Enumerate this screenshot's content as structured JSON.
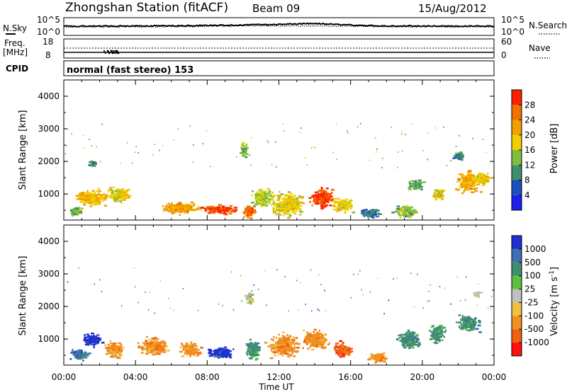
{
  "header": {
    "station": "Zhongshan Station (fitACF)",
    "beam": "Beam 09",
    "date": "15/Aug/2012"
  },
  "param_panel": {
    "nsky_label": "N.Sky",
    "nsearch_label": "N.Search",
    "nsky_ticks": [
      "10^5",
      "10^0"
    ],
    "nsearch_ticks": [
      "10^5",
      "10^0"
    ],
    "freq_label_1": "Freq.",
    "freq_label_2": "[MHz]",
    "freq_ticks": [
      "18",
      "8"
    ],
    "nave_label": "Nave",
    "nave_ticks": [
      "60",
      "0"
    ],
    "cpid_label": "CPID",
    "cpid_text": "normal (fast stereo) 153"
  },
  "time_axis": {
    "label": "Time UT",
    "ticks": [
      "00:00",
      "04:00",
      "08:00",
      "12:00",
      "16:00",
      "20:00",
      "00:00"
    ]
  },
  "range_axis": {
    "label": "Slant Range [km]",
    "ticks": [
      "1000",
      "2000",
      "3000",
      "4000"
    ]
  },
  "power_scale": {
    "label": "Power [dB]",
    "ticks": [
      "4",
      "8",
      "12",
      "16",
      "20",
      "24",
      "28"
    ],
    "colors": [
      "#1f1ff0",
      "#1f4fb8",
      "#3f8f6f",
      "#7fbf3f",
      "#f0d000",
      "#f0a000",
      "#f07000",
      "#ff2000"
    ]
  },
  "velocity_scale": {
    "label": "Velocity [m s",
    "label_sup": "-1",
    "label_end": "]",
    "ticks": [
      "1000",
      "500",
      "100",
      "25",
      "-25",
      "-100",
      "-500",
      "-1000"
    ],
    "colors": [
      "#1f2fd0",
      "#3f6fb0",
      "#3f8f6f",
      "#5fbf3f",
      "#bfbfbf",
      "#f0c040",
      "#f09020",
      "#f06010",
      "#ff1010"
    ]
  },
  "chart_data": [
    {
      "type": "heatmap",
      "title": "Power [dB]",
      "xlabel": "Time UT",
      "ylabel": "Slant Range [km]",
      "xlim": [
        0,
        24
      ],
      "ylim": [
        200,
        4500
      ],
      "clim": [
        0,
        32
      ],
      "blobs": [
        {
          "t": 1.5,
          "r": 900,
          "dt": 1.2,
          "dr": 350,
          "v": 20
        },
        {
          "t": 3.0,
          "r": 1000,
          "dt": 0.9,
          "dr": 300,
          "v": 18
        },
        {
          "t": 0.6,
          "r": 500,
          "dt": 0.6,
          "dr": 200,
          "v": 14
        },
        {
          "t": 6.5,
          "r": 600,
          "dt": 1.5,
          "dr": 250,
          "v": 22
        },
        {
          "t": 8.6,
          "r": 550,
          "dt": 1.4,
          "dr": 180,
          "v": 28
        },
        {
          "t": 10.3,
          "r": 500,
          "dt": 0.5,
          "dr": 250,
          "v": 26
        },
        {
          "t": 11.0,
          "r": 900,
          "dt": 0.8,
          "dr": 400,
          "v": 16
        },
        {
          "t": 12.5,
          "r": 700,
          "dt": 1.2,
          "dr": 500,
          "v": 18
        },
        {
          "t": 14.3,
          "r": 900,
          "dt": 0.9,
          "dr": 400,
          "v": 29
        },
        {
          "t": 15.5,
          "r": 700,
          "dt": 0.8,
          "dr": 300,
          "v": 18
        },
        {
          "t": 17.0,
          "r": 450,
          "dt": 0.8,
          "dr": 200,
          "v": 8
        },
        {
          "t": 19.0,
          "r": 500,
          "dt": 0.9,
          "dr": 250,
          "v": 14
        },
        {
          "t": 19.6,
          "r": 1300,
          "dt": 0.6,
          "dr": 250,
          "v": 12
        },
        {
          "t": 20.9,
          "r": 1000,
          "dt": 0.5,
          "dr": 250,
          "v": 18
        },
        {
          "t": 22.5,
          "r": 1400,
          "dt": 0.9,
          "dr": 400,
          "v": 22
        },
        {
          "t": 23.3,
          "r": 1500,
          "dt": 0.6,
          "dr": 300,
          "v": 18
        },
        {
          "t": 10.0,
          "r": 2400,
          "dt": 0.3,
          "dr": 300,
          "v": 14
        },
        {
          "t": 1.6,
          "r": 1950,
          "dt": 0.3,
          "dr": 150,
          "v": 10
        },
        {
          "t": 22.0,
          "r": 2200,
          "dt": 0.4,
          "dr": 200,
          "v": 10
        }
      ]
    },
    {
      "type": "heatmap",
      "title": "Velocity [m s-1]",
      "xlabel": "Time UT",
      "ylabel": "Slant Range [km]",
      "xlim": [
        0,
        24
      ],
      "ylim": [
        200,
        4500
      ],
      "color_levels": [
        "1000",
        "500",
        "100",
        "25",
        "-25",
        "-100",
        "-500",
        "-1000"
      ],
      "blobs": [
        {
          "t": 0.8,
          "r": 550,
          "dt": 0.7,
          "dr": 250,
          "v": 1
        },
        {
          "t": 1.5,
          "r": 1000,
          "dt": 0.7,
          "dr": 300,
          "v": 0
        },
        {
          "t": 2.8,
          "r": 700,
          "dt": 0.8,
          "dr": 350,
          "v": 6
        },
        {
          "t": 5.0,
          "r": 800,
          "dt": 1.2,
          "dr": 350,
          "v": 6
        },
        {
          "t": 7.0,
          "r": 700,
          "dt": 0.8,
          "dr": 300,
          "v": 6
        },
        {
          "t": 8.7,
          "r": 600,
          "dt": 1.0,
          "dr": 250,
          "v": 0
        },
        {
          "t": 10.5,
          "r": 700,
          "dt": 0.6,
          "dr": 400,
          "v": 2
        },
        {
          "t": 12.2,
          "r": 800,
          "dt": 1.1,
          "dr": 500,
          "v": 6
        },
        {
          "t": 14.0,
          "r": 1000,
          "dt": 1.0,
          "dr": 400,
          "v": 6
        },
        {
          "t": 15.5,
          "r": 700,
          "dt": 0.8,
          "dr": 300,
          "v": 7
        },
        {
          "t": 17.5,
          "r": 450,
          "dt": 0.8,
          "dr": 200,
          "v": 6
        },
        {
          "t": 19.2,
          "r": 1000,
          "dt": 0.8,
          "dr": 400,
          "v": 2
        },
        {
          "t": 20.8,
          "r": 1200,
          "dt": 0.6,
          "dr": 400,
          "v": 2
        },
        {
          "t": 22.5,
          "r": 1500,
          "dt": 0.9,
          "dr": 350,
          "v": 2
        },
        {
          "t": 10.3,
          "r": 2300,
          "dt": 0.3,
          "dr": 300,
          "v": 4
        },
        {
          "t": 23.0,
          "r": 2400,
          "dt": 0.3,
          "dr": 150,
          "v": 4
        }
      ]
    }
  ]
}
